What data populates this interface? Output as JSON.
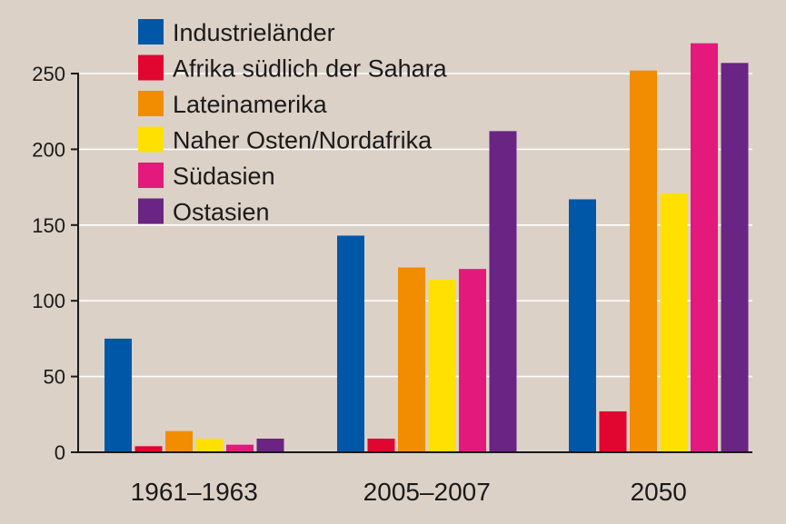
{
  "chart_data": {
    "type": "bar",
    "title": "",
    "xlabel": "",
    "ylabel": "",
    "ylim": [
      0,
      270
    ],
    "yticks": [
      0,
      50,
      100,
      150,
      200,
      250
    ],
    "grid": true,
    "legend_position": "top-left",
    "categories": [
      "1961–1963",
      "2005–2007",
      "2050"
    ],
    "series": [
      {
        "name": "Industrieländer",
        "color": "#0057a8",
        "values": [
          75,
          143,
          167
        ]
      },
      {
        "name": "Afrika südlich der Sahara",
        "color": "#e0062f",
        "values": [
          4,
          9,
          27
        ]
      },
      {
        "name": "Lateinamerika",
        "color": "#f28c00",
        "values": [
          14,
          122,
          252
        ]
      },
      {
        "name": "Naher Osten/Nordafrika",
        "color": "#ffe000",
        "values": [
          9,
          114,
          171
        ]
      },
      {
        "name": "Südasien",
        "color": "#e3197b",
        "values": [
          5,
          121,
          270
        ]
      },
      {
        "name": "Ostasien",
        "color": "#6a2484",
        "values": [
          9,
          212,
          257
        ]
      }
    ]
  },
  "colors": {
    "background": "#dcd1c7",
    "gridline": "#ffffff",
    "axis": "#1a1a1a"
  }
}
